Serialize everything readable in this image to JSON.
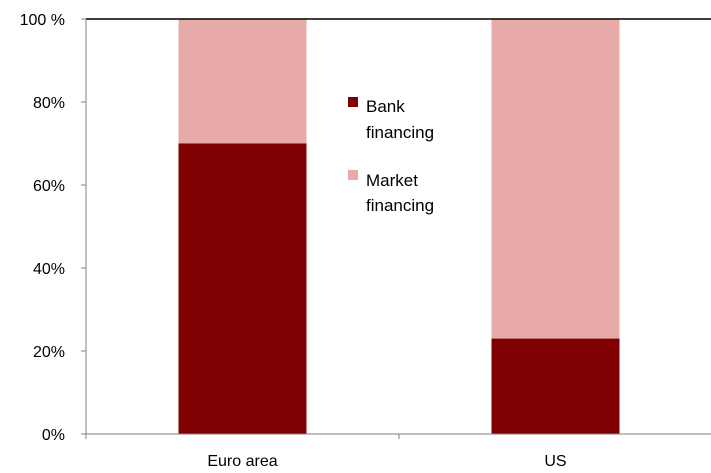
{
  "chart_data": {
    "type": "bar",
    "stacked": true,
    "categories": [
      "Euro area",
      "US"
    ],
    "series": [
      {
        "name": "Bank financing",
        "values": [
          70,
          23
        ],
        "color": "#7f0000"
      },
      {
        "name": "Market financing",
        "values": [
          30,
          77
        ],
        "color": "#e8a9a9"
      }
    ],
    "ylim": [
      0,
      100
    ],
    "yticks": [
      0,
      20,
      40,
      60,
      80,
      100
    ],
    "ytick_labels": [
      "0%",
      "20%",
      "40%",
      "60%",
      "80%",
      "100 %"
    ],
    "grid": false,
    "legend_position": "center"
  }
}
